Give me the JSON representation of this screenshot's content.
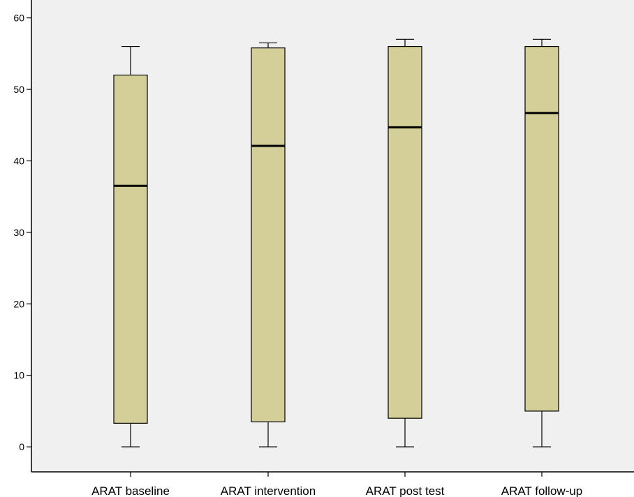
{
  "chart_data": {
    "type": "boxplot",
    "title": "",
    "xlabel": "",
    "ylabel": "",
    "ylim": [
      -3.5,
      62.5
    ],
    "yticks": [
      0,
      10,
      20,
      30,
      40,
      50,
      60
    ],
    "grid": false,
    "legend": "none",
    "categories": [
      "ARAT baseline",
      "ARAT intervention",
      "ARAT post test",
      "ARAT follow-up"
    ],
    "boxes": [
      {
        "min": 0,
        "q1": 3.3,
        "median": 36.5,
        "q3": 52.0,
        "max": 56.0
      },
      {
        "min": 0,
        "q1": 3.5,
        "median": 42.1,
        "q3": 55.8,
        "max": 56.5
      },
      {
        "min": 0,
        "q1": 4.0,
        "median": 44.7,
        "q3": 56.0,
        "max": 57.0
      },
      {
        "min": 0,
        "q1": 5.0,
        "median": 46.7,
        "q3": 56.0,
        "max": 57.0
      }
    ],
    "colors": {
      "plot_background": "#f0f0f0",
      "box_fill": "#d4cf98",
      "box_stroke": "#000000",
      "median": "#000000"
    }
  }
}
